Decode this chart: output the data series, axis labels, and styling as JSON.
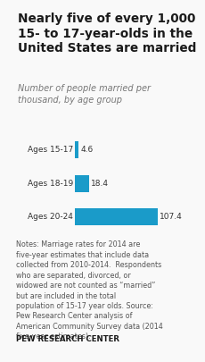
{
  "title": "Nearly five of every 1,000\n15- to 17-year-olds in the\nUnited States are married",
  "subtitle": "Number of people married per\nthousand, by age group",
  "categories": [
    "Ages 15-17",
    "Ages 18-19",
    "Ages 20-24"
  ],
  "values": [
    4.6,
    18.4,
    107.4
  ],
  "bar_color": "#1a9bc9",
  "xlim": [
    0,
    130
  ],
  "notes": "Notes: Marriage rates for 2014 are five-year estimates that include data collected from 2010-2014.  Respondents who are separated, divorced, or widowed are not counted as “married” but are included in the total population of 15-17 year olds. Source: Pew Research Center analysis of American Community Survey data (2014 five-year estimates).",
  "footer": "PEW RESEARCH CENTER",
  "background_color": "#f9f9f9"
}
